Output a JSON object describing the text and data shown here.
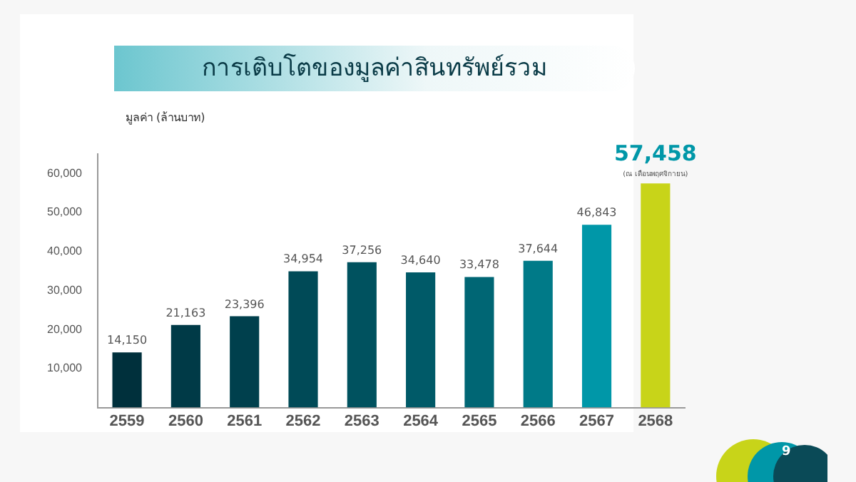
{
  "chart_data": {
    "type": "bar",
    "title": "การเติบโตของมูลค่าสินทรัพย์รวม",
    "ylabel": "มูลค่า (ล้านบาท)",
    "categories": [
      "2559",
      "2560",
      "2561",
      "2562",
      "2563",
      "2564",
      "2565",
      "2566",
      "2567",
      "2568"
    ],
    "values": [
      14150,
      21163,
      23396,
      34954,
      37256,
      34640,
      33478,
      37644,
      46843,
      57458
    ],
    "colors": [
      "#00303c",
      "#003a47",
      "#00404d",
      "#004a57",
      "#00525f",
      "#005a68",
      "#006674",
      "#007a88",
      "#0097a8",
      "#c8d419"
    ],
    "ylim": [
      0,
      65000
    ],
    "yticks": [
      {
        "value": 10000,
        "label": "10,000"
      },
      {
        "value": 20000,
        "label": "20,000"
      },
      {
        "value": 30000,
        "label": "30,000"
      },
      {
        "value": 40000,
        "label": "40,000"
      },
      {
        "value": 50000,
        "label": "50,000"
      },
      {
        "value": 60000,
        "label": "60,000"
      }
    ],
    "grid": false,
    "value_labels": [
      "14,150",
      "21,163",
      "23,396",
      "34,954",
      "37,256",
      "34,640",
      "33,478",
      "37,644",
      "46,843",
      "57,458"
    ],
    "annotations": [
      {
        "text": "(ณ เดือนพฤศจิกายน)",
        "x": "2568",
        "y": 57458
      },
      "9"
    ]
  }
}
